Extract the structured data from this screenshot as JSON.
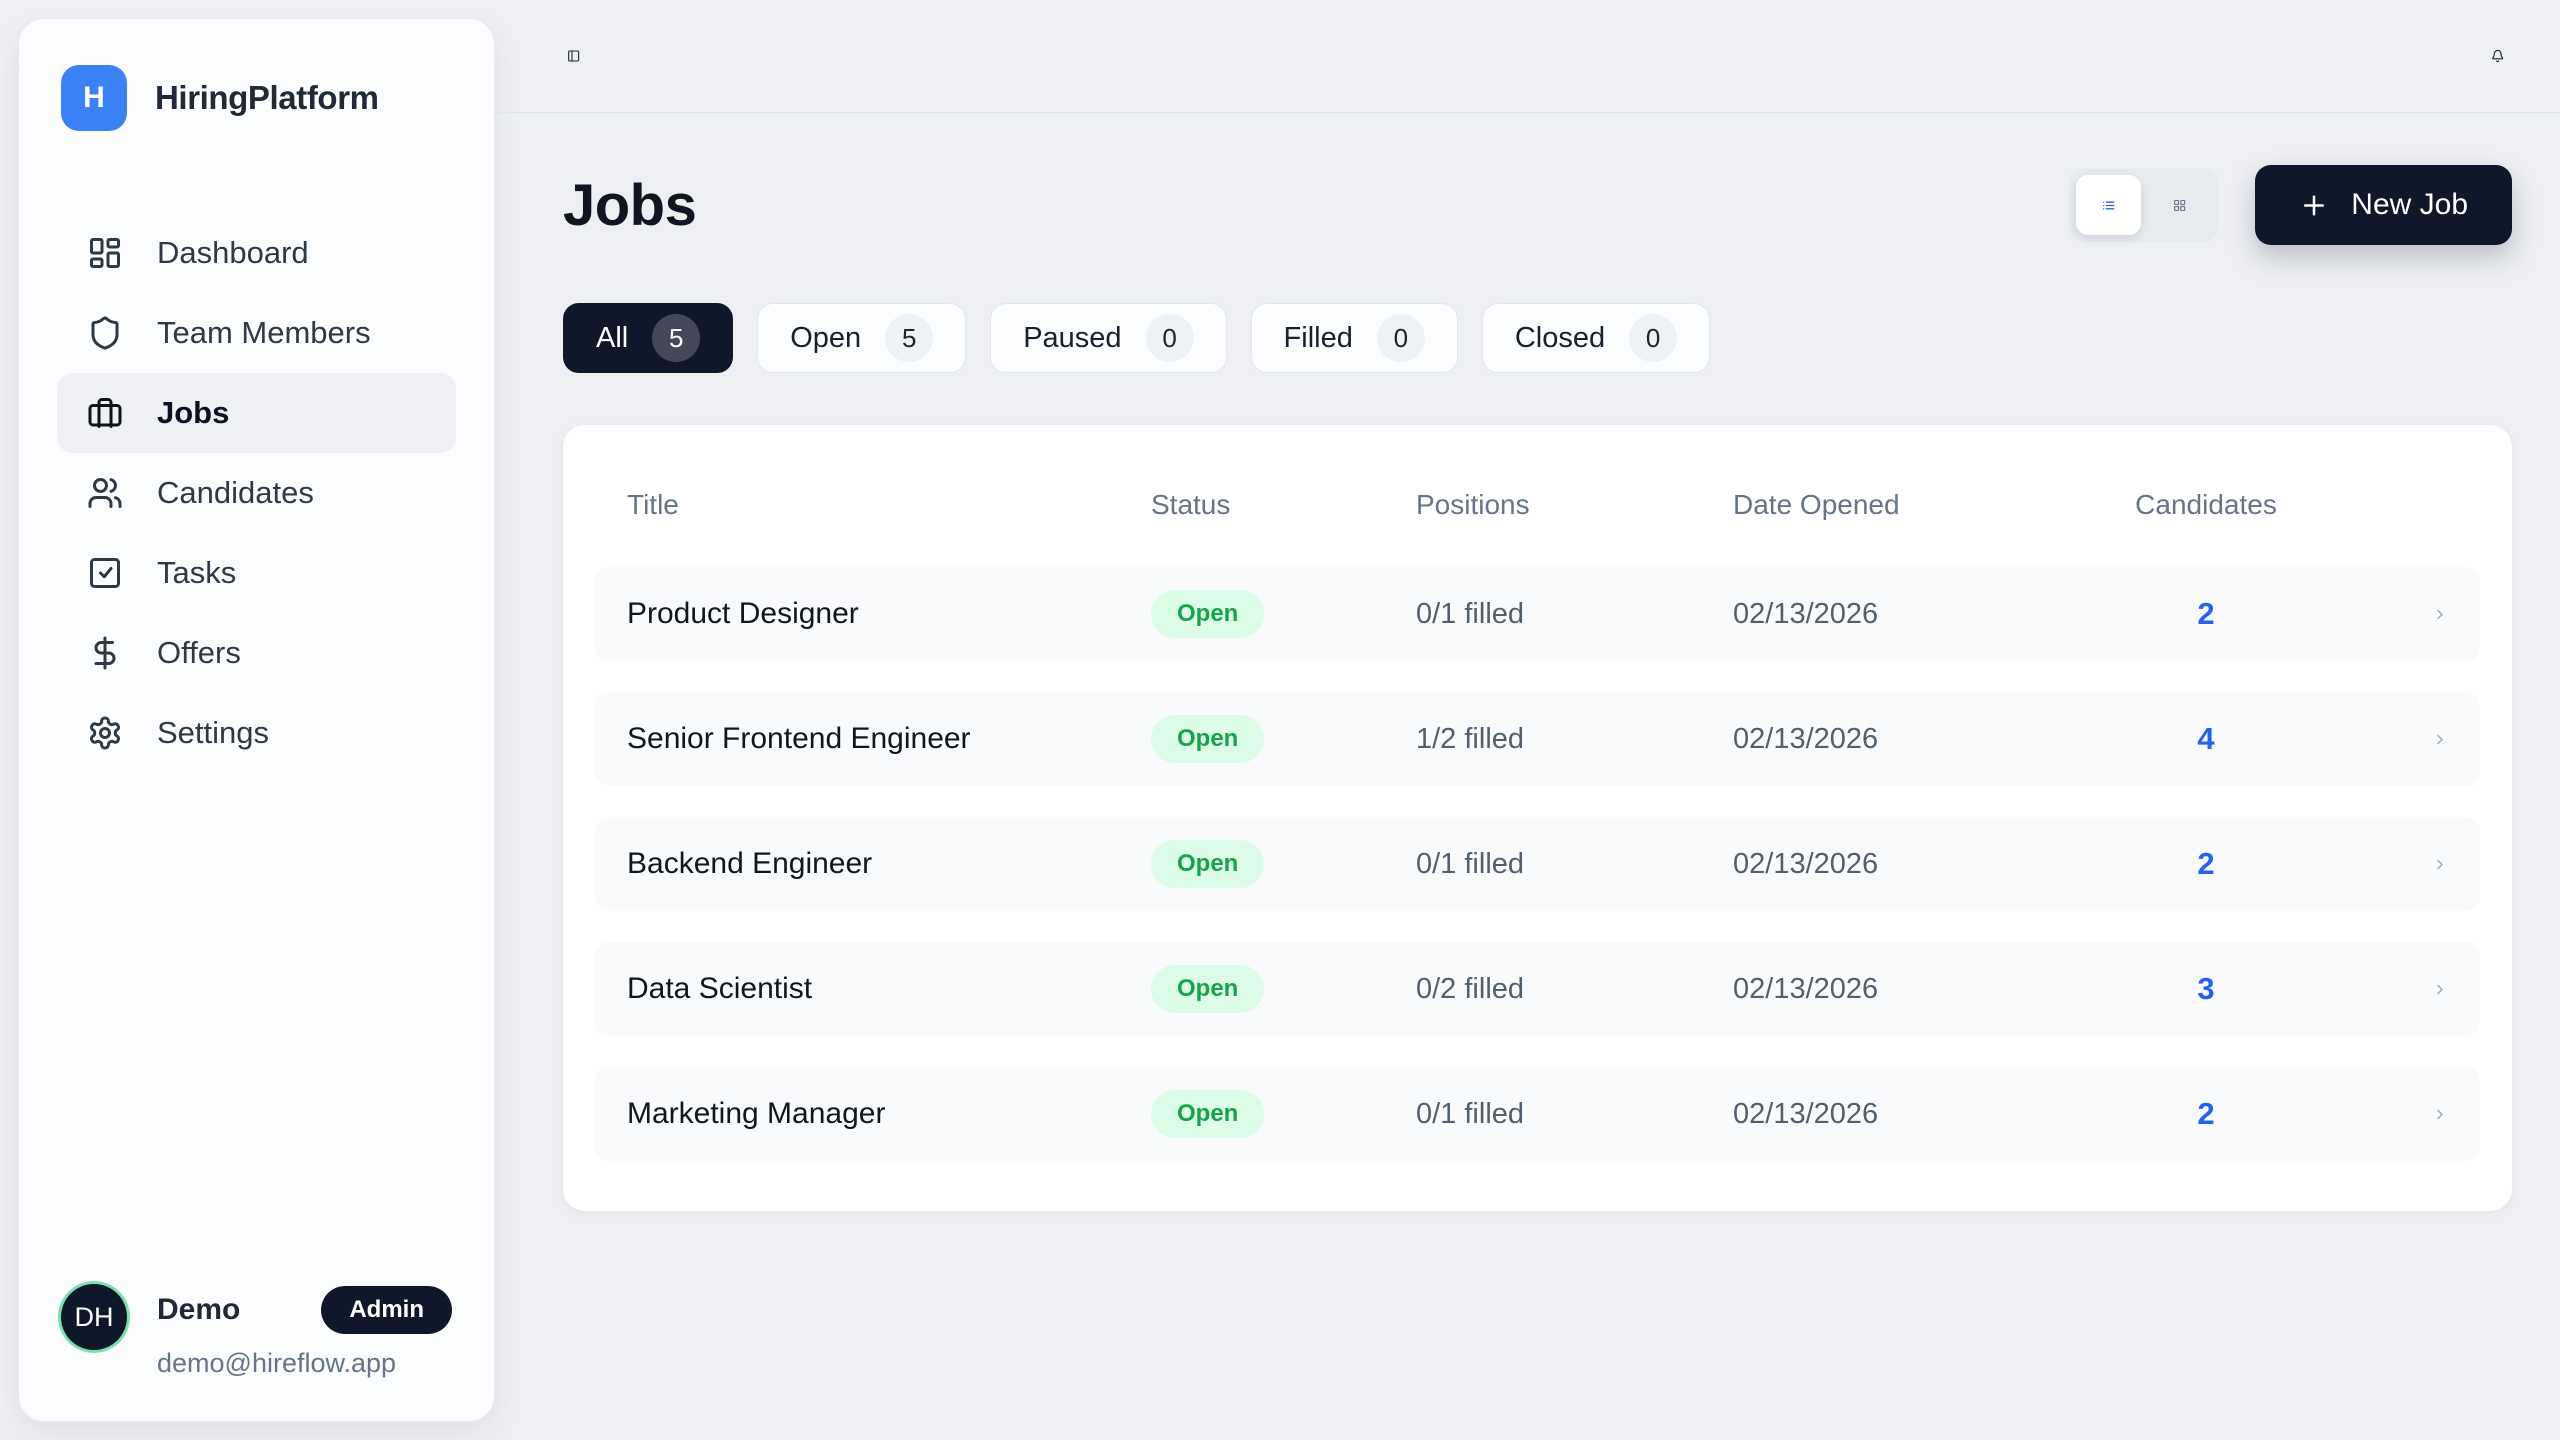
{
  "app": {
    "name": "HiringPlatform",
    "logo_letter": "H"
  },
  "sidebar": {
    "items": [
      {
        "label": "Dashboard",
        "icon": "dashboard",
        "active": false
      },
      {
        "label": "Team Members",
        "icon": "shield",
        "active": false
      },
      {
        "label": "Jobs",
        "icon": "briefcase",
        "active": true
      },
      {
        "label": "Candidates",
        "icon": "users",
        "active": false
      },
      {
        "label": "Tasks",
        "icon": "square-check",
        "active": false
      },
      {
        "label": "Offers",
        "icon": "dollar-sign",
        "active": false
      },
      {
        "label": "Settings",
        "icon": "gear",
        "active": false
      }
    ],
    "profile": {
      "initials": "DH",
      "name": "Demo",
      "role_badge": "Admin",
      "email": "demo@hireflow.app"
    }
  },
  "page": {
    "title": "Jobs",
    "new_job_label": "New Job"
  },
  "filters": [
    {
      "label": "All",
      "count": 5,
      "active": true
    },
    {
      "label": "Open",
      "count": 5,
      "active": false
    },
    {
      "label": "Paused",
      "count": 0,
      "active": false
    },
    {
      "label": "Filled",
      "count": 0,
      "active": false
    },
    {
      "label": "Closed",
      "count": 0,
      "active": false
    }
  ],
  "table": {
    "columns": [
      "Title",
      "Status",
      "Positions",
      "Date Opened",
      "Candidates"
    ],
    "rows": [
      {
        "title": "Product Designer",
        "status": "Open",
        "positions": "0/1 filled",
        "date_opened": "02/13/2026",
        "candidates": "2"
      },
      {
        "title": "Senior Frontend Engineer",
        "status": "Open",
        "positions": "1/2 filled",
        "date_opened": "02/13/2026",
        "candidates": "4"
      },
      {
        "title": "Backend Engineer",
        "status": "Open",
        "positions": "0/1 filled",
        "date_opened": "02/13/2026",
        "candidates": "2"
      },
      {
        "title": "Data Scientist",
        "status": "Open",
        "positions": "0/2 filled",
        "date_opened": "02/13/2026",
        "candidates": "3"
      },
      {
        "title": "Marketing Manager",
        "status": "Open",
        "positions": "0/1 filled",
        "date_opened": "02/13/2026",
        "candidates": "2"
      }
    ]
  },
  "colors": {
    "brand_blue": "#3b82f6",
    "navy": "#0f172a",
    "page_bg": "#edeff3",
    "badge_open_bg": "#dcfce7",
    "badge_open_text": "#16a34a",
    "candidates_count_blue": "#2563eb"
  }
}
